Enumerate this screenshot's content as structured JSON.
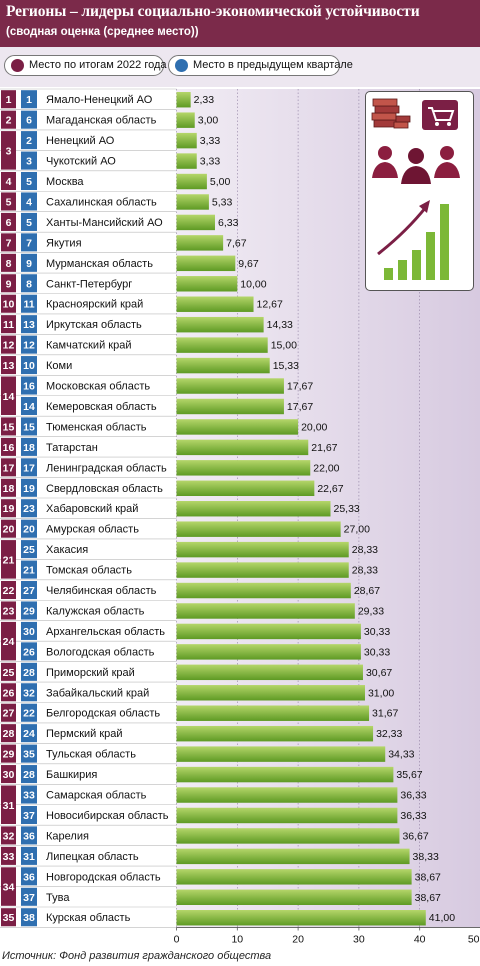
{
  "header": {
    "title": "Регионы – лидеры социально-экономической устойчивости",
    "subtitle": "(сводная оценка (среднее место))"
  },
  "legend": {
    "current": "Место по итогам 2022 года",
    "previous": "Место в предыдущем квартале"
  },
  "source": "Источник: Фонд развития гражданского общества",
  "colors": {
    "header": "#7b2a4a",
    "current_rank": "#7b1f45",
    "previous_rank": "#2f6fb0",
    "bar_start": "#b5d66a",
    "bar_end": "#5e9a24",
    "panel_light": "#f1ecf4",
    "panel_dark": "#d7cae0"
  },
  "chart_data": {
    "type": "bar",
    "orientation": "horizontal",
    "xlim": [
      0,
      50
    ],
    "xticks": [
      "0",
      "10",
      "20",
      "30",
      "40",
      "50"
    ],
    "grid": true,
    "current_ranks": [
      {
        "label": "1",
        "span": 1
      },
      {
        "label": "2",
        "span": 1
      },
      {
        "label": "3",
        "span": 2
      },
      {
        "label": "4",
        "span": 1
      },
      {
        "label": "5",
        "span": 1
      },
      {
        "label": "6",
        "span": 1
      },
      {
        "label": "7",
        "span": 1
      },
      {
        "label": "8",
        "span": 1
      },
      {
        "label": "9",
        "span": 1
      },
      {
        "label": "10",
        "span": 1
      },
      {
        "label": "11",
        "span": 1
      },
      {
        "label": "12",
        "span": 1
      },
      {
        "label": "13",
        "span": 1
      },
      {
        "label": "14",
        "span": 2
      },
      {
        "label": "15",
        "span": 1
      },
      {
        "label": "16",
        "span": 1
      },
      {
        "label": "17",
        "span": 1
      },
      {
        "label": "18",
        "span": 1
      },
      {
        "label": "19",
        "span": 1
      },
      {
        "label": "20",
        "span": 1
      },
      {
        "label": "21",
        "span": 2
      },
      {
        "label": "22",
        "span": 1
      },
      {
        "label": "23",
        "span": 1
      },
      {
        "label": "24",
        "span": 2
      },
      {
        "label": "25",
        "span": 1
      },
      {
        "label": "26",
        "span": 1
      },
      {
        "label": "27",
        "span": 1
      },
      {
        "label": "28",
        "span": 1
      },
      {
        "label": "29",
        "span": 1
      },
      {
        "label": "30",
        "span": 1
      },
      {
        "label": "31",
        "span": 2
      },
      {
        "label": "32",
        "span": 1
      },
      {
        "label": "33",
        "span": 1
      },
      {
        "label": "34",
        "span": 2
      },
      {
        "label": "35",
        "span": 1
      }
    ],
    "rows": [
      {
        "prev": "1",
        "region": "Ямало-Ненецкий АО",
        "value": 2.33,
        "label": "2,33"
      },
      {
        "prev": "6",
        "region": "Магаданская область",
        "value": 3.0,
        "label": "3,00"
      },
      {
        "prev": "2",
        "region": "Ненецкий АО",
        "value": 3.33,
        "label": "3,33"
      },
      {
        "prev": "3",
        "region": "Чукотский АО",
        "value": 3.33,
        "label": "3,33"
      },
      {
        "prev": "5",
        "region": "Москва",
        "value": 5.0,
        "label": "5,00"
      },
      {
        "prev": "4",
        "region": "Сахалинская область",
        "value": 5.33,
        "label": "5,33"
      },
      {
        "prev": "5",
        "region": "Ханты-Мансийский АО",
        "value": 6.33,
        "label": "6,33"
      },
      {
        "prev": "7",
        "region": "Якутия",
        "value": 7.67,
        "label": "7,67"
      },
      {
        "prev": "9",
        "region": "Мурманская область",
        "value": 9.67,
        "label": "9,67"
      },
      {
        "prev": "8",
        "region": "Санкт-Петербург",
        "value": 10.0,
        "label": "10,00"
      },
      {
        "prev": "11",
        "region": "Красноярский край",
        "value": 12.67,
        "label": "12,67"
      },
      {
        "prev": "13",
        "region": "Иркутская область",
        "value": 14.33,
        "label": "14,33"
      },
      {
        "prev": "12",
        "region": "Камчатский край",
        "value": 15.0,
        "label": "15,00"
      },
      {
        "prev": "10",
        "region": "Коми",
        "value": 15.33,
        "label": "15,33"
      },
      {
        "prev": "16",
        "region": "Московская область",
        "value": 17.67,
        "label": "17,67"
      },
      {
        "prev": "14",
        "region": "Кемеровская область",
        "value": 17.67,
        "label": "17,67"
      },
      {
        "prev": "15",
        "region": "Тюменская область",
        "value": 20.0,
        "label": "20,00"
      },
      {
        "prev": "18",
        "region": "Татарстан",
        "value": 21.67,
        "label": "21,67"
      },
      {
        "prev": "17",
        "region": "Ленинградская область",
        "value": 22.0,
        "label": "22,00"
      },
      {
        "prev": "19",
        "region": "Свердловская область",
        "value": 22.67,
        "label": "22,67"
      },
      {
        "prev": "23",
        "region": "Хабаровский край",
        "value": 25.33,
        "label": "25,33"
      },
      {
        "prev": "20",
        "region": "Амурская область",
        "value": 27.0,
        "label": "27,00"
      },
      {
        "prev": "25",
        "region": "Хакасия",
        "value": 28.33,
        "label": "28,33"
      },
      {
        "prev": "21",
        "region": "Томская область",
        "value": 28.33,
        "label": "28,33"
      },
      {
        "prev": "27",
        "region": "Челябинская область",
        "value": 28.67,
        "label": "28,67"
      },
      {
        "prev": "29",
        "region": "Калужская область",
        "value": 29.33,
        "label": "29,33"
      },
      {
        "prev": "30",
        "region": "Архангельская область",
        "value": 30.33,
        "label": "30,33"
      },
      {
        "prev": "26",
        "region": "Вологодская область",
        "value": 30.33,
        "label": "30,33"
      },
      {
        "prev": "28",
        "region": "Приморский край",
        "value": 30.67,
        "label": "30,67"
      },
      {
        "prev": "32",
        "region": "Забайкальский край",
        "value": 31.0,
        "label": "31,00"
      },
      {
        "prev": "22",
        "region": "Белгородская область",
        "value": 31.67,
        "label": "31,67"
      },
      {
        "prev": "24",
        "region": "Пермский край",
        "value": 32.33,
        "label": "32,33"
      },
      {
        "prev": "35",
        "region": "Тульская область",
        "value": 34.33,
        "label": "34,33"
      },
      {
        "prev": "28",
        "region": "Башкирия",
        "value": 35.67,
        "label": "35,67"
      },
      {
        "prev": "33",
        "region": "Самарская область",
        "value": 36.33,
        "label": "36,33"
      },
      {
        "prev": "37",
        "region": "Новосибирская область",
        "value": 36.33,
        "label": "36,33"
      },
      {
        "prev": "36",
        "region": "Карелия",
        "value": 36.67,
        "label": "36,67"
      },
      {
        "prev": "31",
        "region": "Липецкая область",
        "value": 38.33,
        "label": "38,33"
      },
      {
        "prev": "36",
        "region": "Новгородская область",
        "value": 38.67,
        "label": "38,67"
      },
      {
        "prev": "37",
        "region": "Тува",
        "value": 38.67,
        "label": "38,67"
      },
      {
        "prev": "38",
        "region": "Курская область",
        "value": 41.0,
        "label": "41,00"
      }
    ]
  }
}
